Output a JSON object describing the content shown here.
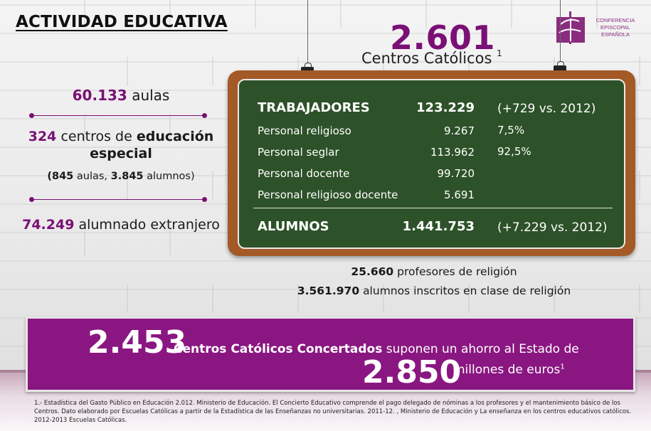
{
  "title": "ACTIVIDAD EDUCATIVA",
  "logo": {
    "lines": [
      "CONFERENCIA",
      "EPISCOPAL",
      "ESPAÑOLA"
    ],
    "icon": "cross-logo-icon"
  },
  "headline": {
    "number": "2.601",
    "label": "Centros Católicos",
    "sup": "1"
  },
  "left": {
    "aulas": {
      "value": "60.133",
      "label": "aulas"
    },
    "especial": {
      "value": "324",
      "label1": "centros de",
      "bold1": "educación",
      "bold2": "especial"
    },
    "especial_detail": {
      "open": "(",
      "aulas_val": "845",
      "aulas_lbl": "aulas,",
      "alumnos_val": "3.845",
      "alumnos_lbl": "alumnos)"
    },
    "extranjero": {
      "value": "74.249",
      "label": "alumnado extranjero"
    }
  },
  "board": {
    "trabajadores": {
      "label": "TRABAJADORES",
      "value": "123.229",
      "extra": "(+729 vs. 2012)"
    },
    "rows": [
      {
        "label": "Personal religioso",
        "value": "9.267",
        "extra": "7,5%"
      },
      {
        "label": "Personal seglar",
        "value": "113.962",
        "extra": "92,5%"
      },
      {
        "label": "Personal docente",
        "value": "99.720",
        "extra": ""
      },
      {
        "label": "Personal religioso docente",
        "value": "5.691",
        "extra": ""
      }
    ],
    "alumnos": {
      "label": "ALUMNOS",
      "value": "1.441.753",
      "extra": "(+7.229 vs. 2012)"
    }
  },
  "religion": {
    "profesores": {
      "value": "25.660",
      "label": "profesores de religión"
    },
    "alumnos": {
      "value": "3.561.970",
      "label": "alumnos inscritos en clase de religión"
    }
  },
  "banner": {
    "num1": "2.453",
    "bold_text": "Centros Católicos Concertados",
    "text": "suponen un ahorro al Estado de",
    "num2": "2.850",
    "text2": "millones de euros",
    "sup": "1"
  },
  "footnote": "1.- Estadística del Gasto Público en  Educación 2.012. Ministerio de Educación. El Concierto Educativo comprende el pago delegado de nóminas a los profesores y el mantenimiento básico de los Centros. Dato elaborado por Escuelas Católicas a partir de la Estadística de las Enseñanzas no universitarias. 2011-12. , Ministerio de Educación y  La enseñanza en los centros educativos católicos. 2012-2013 Escuelas Católicas.",
  "colors": {
    "purple": "#7a1075",
    "board_frame": "#a45a26",
    "board": "#2d5128",
    "banner": "#8a1781"
  }
}
